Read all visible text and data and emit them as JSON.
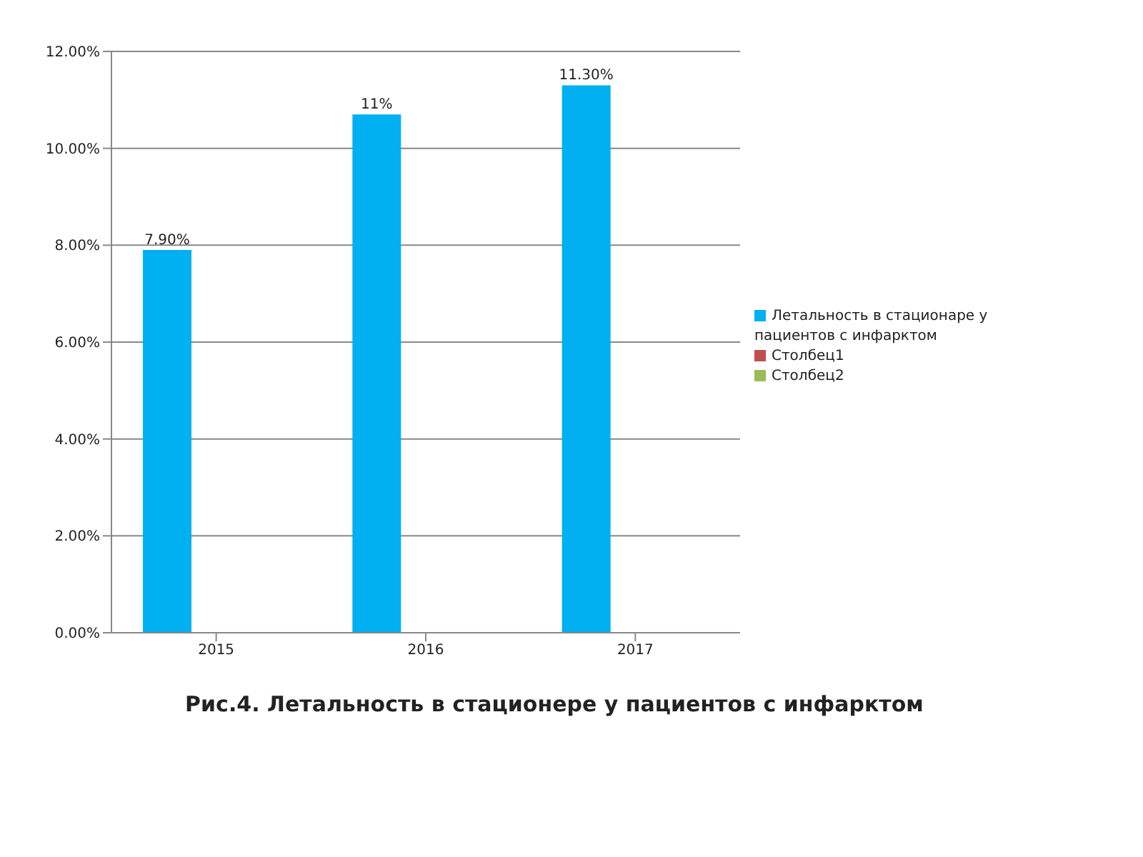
{
  "chart_data": {
    "type": "bar",
    "title": "Рис.4. Летальность в стационере у пациентов с инфарктом",
    "categories": [
      "2015",
      "2016",
      "2017"
    ],
    "series": [
      {
        "name": "Летальность в стационаре у пациентов с инфарктом",
        "color": "#00b0f0",
        "values": [
          7.9,
          10.7,
          11.3
        ],
        "value_labels": [
          "7.90%",
          "11%",
          "11.30%"
        ]
      },
      {
        "name": "Столбец1",
        "color": "#c0504d",
        "values": [
          null,
          null,
          null
        ]
      },
      {
        "name": "Столбец2",
        "color": "#9bbb59",
        "values": [
          null,
          null,
          null
        ]
      }
    ],
    "ylim": [
      0,
      12
    ],
    "yticks": [
      {
        "value": 0,
        "label": "0.00%"
      },
      {
        "value": 2,
        "label": "2.00%"
      },
      {
        "value": 4,
        "label": "4.00%"
      },
      {
        "value": 6,
        "label": "6.00%"
      },
      {
        "value": 8,
        "label": "8.00%"
      },
      {
        "value": 10,
        "label": "10.00%"
      },
      {
        "value": 12,
        "label": "12.00%"
      }
    ],
    "grid": "y",
    "legend": "right"
  }
}
